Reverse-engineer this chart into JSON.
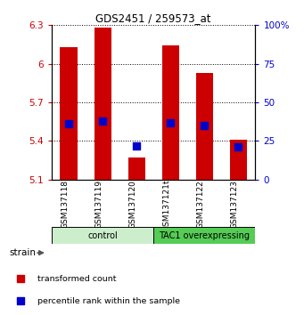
{
  "title": "GDS2451 / 259573_at",
  "samples": [
    "GSM137118",
    "GSM137119",
    "GSM137120",
    "GSM137121t",
    "GSM137122",
    "GSM137123"
  ],
  "group_colors": [
    "#cceecc",
    "#55cc55"
  ],
  "bar_bottom": 5.1,
  "transformed_counts": [
    6.13,
    6.28,
    5.27,
    6.14,
    5.93,
    5.41
  ],
  "percentile_ranks": [
    36,
    38,
    22,
    37,
    35,
    21
  ],
  "bar_color": "#cc0000",
  "dot_color": "#0000cc",
  "ylim": [
    5.1,
    6.3
  ],
  "yticks": [
    5.1,
    5.4,
    5.7,
    6.0,
    6.3
  ],
  "ytick_labels": [
    "5.1",
    "5.4",
    "5.7",
    "6",
    "6.3"
  ],
  "right_ylim": [
    0,
    100
  ],
  "right_yticks": [
    0,
    25,
    50,
    75,
    100
  ],
  "right_ytick_labels": [
    "0",
    "25",
    "50",
    "75",
    "100%"
  ],
  "left_label_color": "#cc0000",
  "right_label_color": "#0000cc",
  "bar_width": 0.5,
  "dot_size": 35,
  "strain_label": "strain",
  "legend_red": "transformed count",
  "legend_blue": "percentile rank within the sample"
}
